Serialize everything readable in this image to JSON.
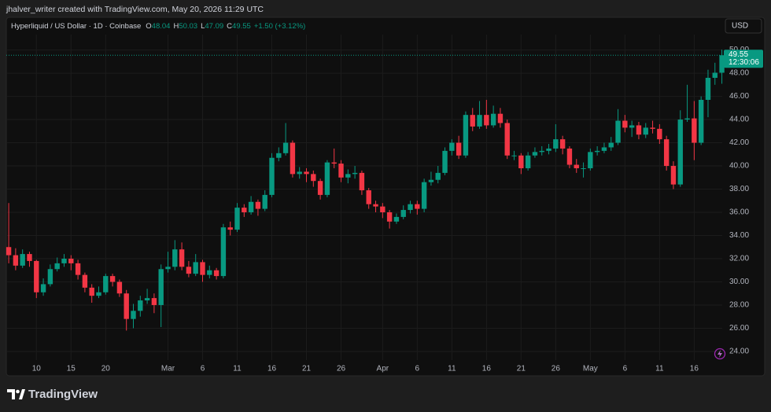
{
  "attribution": "jhalver_writer created with TradingView.com, May 20, 2026 11:29 UTC",
  "brand": "TradingView",
  "chart_data": {
    "type": "candlestick",
    "symbol": "Hyperliquid / US Dollar · 1D · Coinbase",
    "ohlc_letters": [
      "O",
      "H",
      "L",
      "C"
    ],
    "change": "+1.50 (+3.12%)",
    "currency": "USD",
    "countdown": "12:30:06",
    "up_color": "#089981",
    "down_color": "#f23645",
    "open": [
      33.0,
      32.3,
      31.4,
      32.4,
      31.8,
      29.1,
      29.8,
      31.1,
      31.6,
      32.0,
      31.6,
      30.6,
      29.5,
      28.8,
      29.1,
      30.5,
      30.0,
      29.0,
      26.8,
      27.5,
      28.4,
      28.6,
      28.0,
      31.1,
      31.3,
      32.8,
      31.3,
      30.7,
      31.7,
      30.6,
      31.0,
      30.5,
      34.7,
      34.5,
      36.4,
      36.0,
      36.9,
      36.3,
      37.5,
      40.7,
      41.1,
      42.0,
      39.3,
      39.5,
      39.3,
      38.7,
      37.5,
      40.3,
      40.2,
      39.0,
      39.3,
      39.4,
      37.9,
      36.7,
      36.5,
      36.0,
      35.2,
      35.6,
      36.2,
      36.7,
      36.3,
      38.6,
      38.8,
      39.4,
      41.3,
      42.0,
      40.9,
      44.4,
      43.4,
      44.4,
      43.5,
      44.5,
      43.7,
      40.9,
      40.9,
      39.8,
      40.9,
      41.2,
      41.3,
      41.5,
      42.3,
      41.5,
      40.1,
      39.8,
      39.8,
      41.2,
      41.3,
      41.6,
      42.0,
      43.9,
      43.3,
      43.5,
      42.7,
      43.3,
      43.2,
      42.3,
      40.0,
      38.4,
      44.0,
      44.1,
      42.0,
      45.7,
      47.6,
      48.04
    ],
    "high": [
      36.8,
      32.9,
      32.8,
      32.6,
      31.9,
      30.3,
      31.5,
      32.1,
      32.4,
      32.3,
      31.9,
      30.8,
      29.8,
      29.6,
      30.7,
      30.7,
      30.2,
      29.3,
      28.1,
      28.8,
      29.4,
      29.0,
      31.5,
      32.6,
      33.6,
      33.4,
      31.8,
      32.4,
      31.9,
      31.4,
      31.2,
      35.0,
      35.2,
      36.8,
      36.7,
      37.4,
      37.1,
      37.9,
      41.1,
      41.6,
      43.7,
      42.2,
      39.9,
      39.8,
      39.6,
      38.9,
      40.5,
      41.5,
      40.5,
      39.7,
      40.0,
      39.6,
      38.1,
      37.0,
      36.8,
      36.2,
      35.9,
      36.6,
      37.0,
      37.0,
      38.9,
      39.5,
      40.0,
      41.6,
      42.3,
      42.6,
      44.7,
      45.0,
      45.6,
      45.7,
      45.2,
      45.0,
      44.0,
      41.3,
      41.1,
      41.2,
      41.6,
      41.7,
      41.9,
      43.6,
      42.6,
      41.7,
      40.6,
      40.3,
      41.5,
      41.7,
      42.0,
      42.5,
      44.9,
      44.4,
      43.9,
      43.8,
      43.7,
      43.9,
      43.6,
      42.6,
      40.4,
      44.8,
      47.0,
      45.6,
      46.0,
      48.3,
      48.9,
      50.03
    ],
    "low": [
      31.6,
      31.0,
      31.2,
      31.3,
      28.6,
      28.8,
      29.6,
      30.9,
      31.3,
      31.0,
      30.2,
      29.1,
      28.2,
      28.6,
      28.9,
      29.6,
      28.7,
      25.8,
      26.0,
      27.0,
      28.1,
      27.3,
      26.1,
      30.8,
      31.0,
      31.0,
      30.4,
      30.5,
      30.0,
      30.3,
      30.2,
      30.3,
      34.0,
      34.3,
      35.6,
      35.8,
      35.7,
      36.1,
      37.3,
      40.4,
      40.9,
      39.0,
      38.9,
      38.6,
      38.2,
      37.1,
      37.3,
      39.8,
      38.6,
      38.5,
      38.9,
      37.5,
      36.3,
      36.0,
      35.5,
      34.6,
      35.0,
      35.4,
      35.9,
      35.8,
      36.0,
      38.3,
      38.5,
      39.2,
      40.9,
      40.6,
      40.7,
      43.0,
      43.2,
      43.2,
      43.3,
      43.3,
      40.6,
      40.5,
      39.3,
      39.6,
      40.7,
      40.9,
      41.0,
      41.2,
      41.0,
      39.8,
      39.4,
      39.0,
      39.6,
      40.9,
      41.1,
      41.3,
      41.8,
      42.9,
      42.5,
      42.3,
      42.4,
      42.8,
      41.9,
      39.6,
      38.0,
      38.2,
      43.8,
      40.5,
      41.8,
      44.2,
      47.0,
      47.09
    ],
    "close": [
      32.3,
      31.4,
      32.4,
      31.8,
      29.1,
      29.8,
      31.1,
      31.6,
      32.0,
      31.6,
      30.6,
      29.5,
      28.8,
      29.1,
      30.5,
      30.0,
      29.0,
      26.8,
      27.5,
      28.4,
      28.6,
      28.0,
      31.1,
      31.3,
      32.8,
      31.3,
      30.7,
      31.7,
      30.6,
      31.0,
      30.5,
      34.7,
      34.5,
      36.4,
      36.0,
      36.9,
      36.3,
      37.5,
      40.7,
      41.1,
      42.0,
      39.3,
      39.5,
      39.3,
      38.7,
      37.5,
      40.3,
      40.2,
      39.0,
      39.3,
      39.4,
      37.9,
      36.7,
      36.5,
      36.0,
      35.2,
      35.6,
      36.2,
      36.7,
      36.3,
      38.6,
      38.8,
      39.4,
      41.3,
      42.0,
      40.9,
      44.4,
      43.4,
      44.4,
      43.5,
      44.5,
      43.7,
      40.9,
      40.9,
      39.8,
      40.9,
      41.2,
      41.3,
      41.5,
      42.3,
      41.5,
      40.1,
      39.8,
      39.8,
      41.2,
      41.3,
      41.6,
      42.0,
      43.9,
      43.3,
      43.5,
      42.7,
      43.3,
      43.2,
      42.3,
      40.0,
      38.4,
      44.0,
      44.1,
      42.0,
      45.7,
      47.6,
      48.04,
      49.55
    ],
    "xlim": [
      -0.35,
      103.05
    ],
    "xticks": [
      {
        "value": 4,
        "label": "10"
      },
      {
        "value": 9,
        "label": "15"
      },
      {
        "value": 14,
        "label": "20"
      },
      {
        "value": 23,
        "label": "Mar"
      },
      {
        "value": 28,
        "label": "6"
      },
      {
        "value": 33,
        "label": "11"
      },
      {
        "value": 38,
        "label": "16"
      },
      {
        "value": 43,
        "label": "21"
      },
      {
        "value": 48,
        "label": "26"
      },
      {
        "value": 54,
        "label": "Apr"
      },
      {
        "value": 59,
        "label": "6"
      },
      {
        "value": 64,
        "label": "11"
      },
      {
        "value": 69,
        "label": "16"
      },
      {
        "value": 74,
        "label": "21"
      },
      {
        "value": 79,
        "label": "26"
      },
      {
        "value": 84,
        "label": "May"
      },
      {
        "value": 89,
        "label": "6"
      },
      {
        "value": 94,
        "label": "11"
      },
      {
        "value": 99,
        "label": "16"
      }
    ],
    "ylim": [
      23.25,
      51.6
    ],
    "yticks": [
      {
        "value": 24,
        "label": "24.00"
      },
      {
        "value": 26,
        "label": "26.00"
      },
      {
        "value": 28,
        "label": "28.00"
      },
      {
        "value": 30,
        "label": "30.00"
      },
      {
        "value": 32,
        "label": "32.00"
      },
      {
        "value": 34,
        "label": "34.00"
      },
      {
        "value": 36,
        "label": "36.00"
      },
      {
        "value": 38,
        "label": "38.00"
      },
      {
        "value": 40,
        "label": "40.00"
      },
      {
        "value": 42,
        "label": "42.00"
      },
      {
        "value": 44,
        "label": "44.00"
      },
      {
        "value": 46,
        "label": "46.00"
      },
      {
        "value": 48,
        "label": "48.00"
      },
      {
        "value": 50,
        "label": "50.00"
      }
    ],
    "grid": true
  }
}
